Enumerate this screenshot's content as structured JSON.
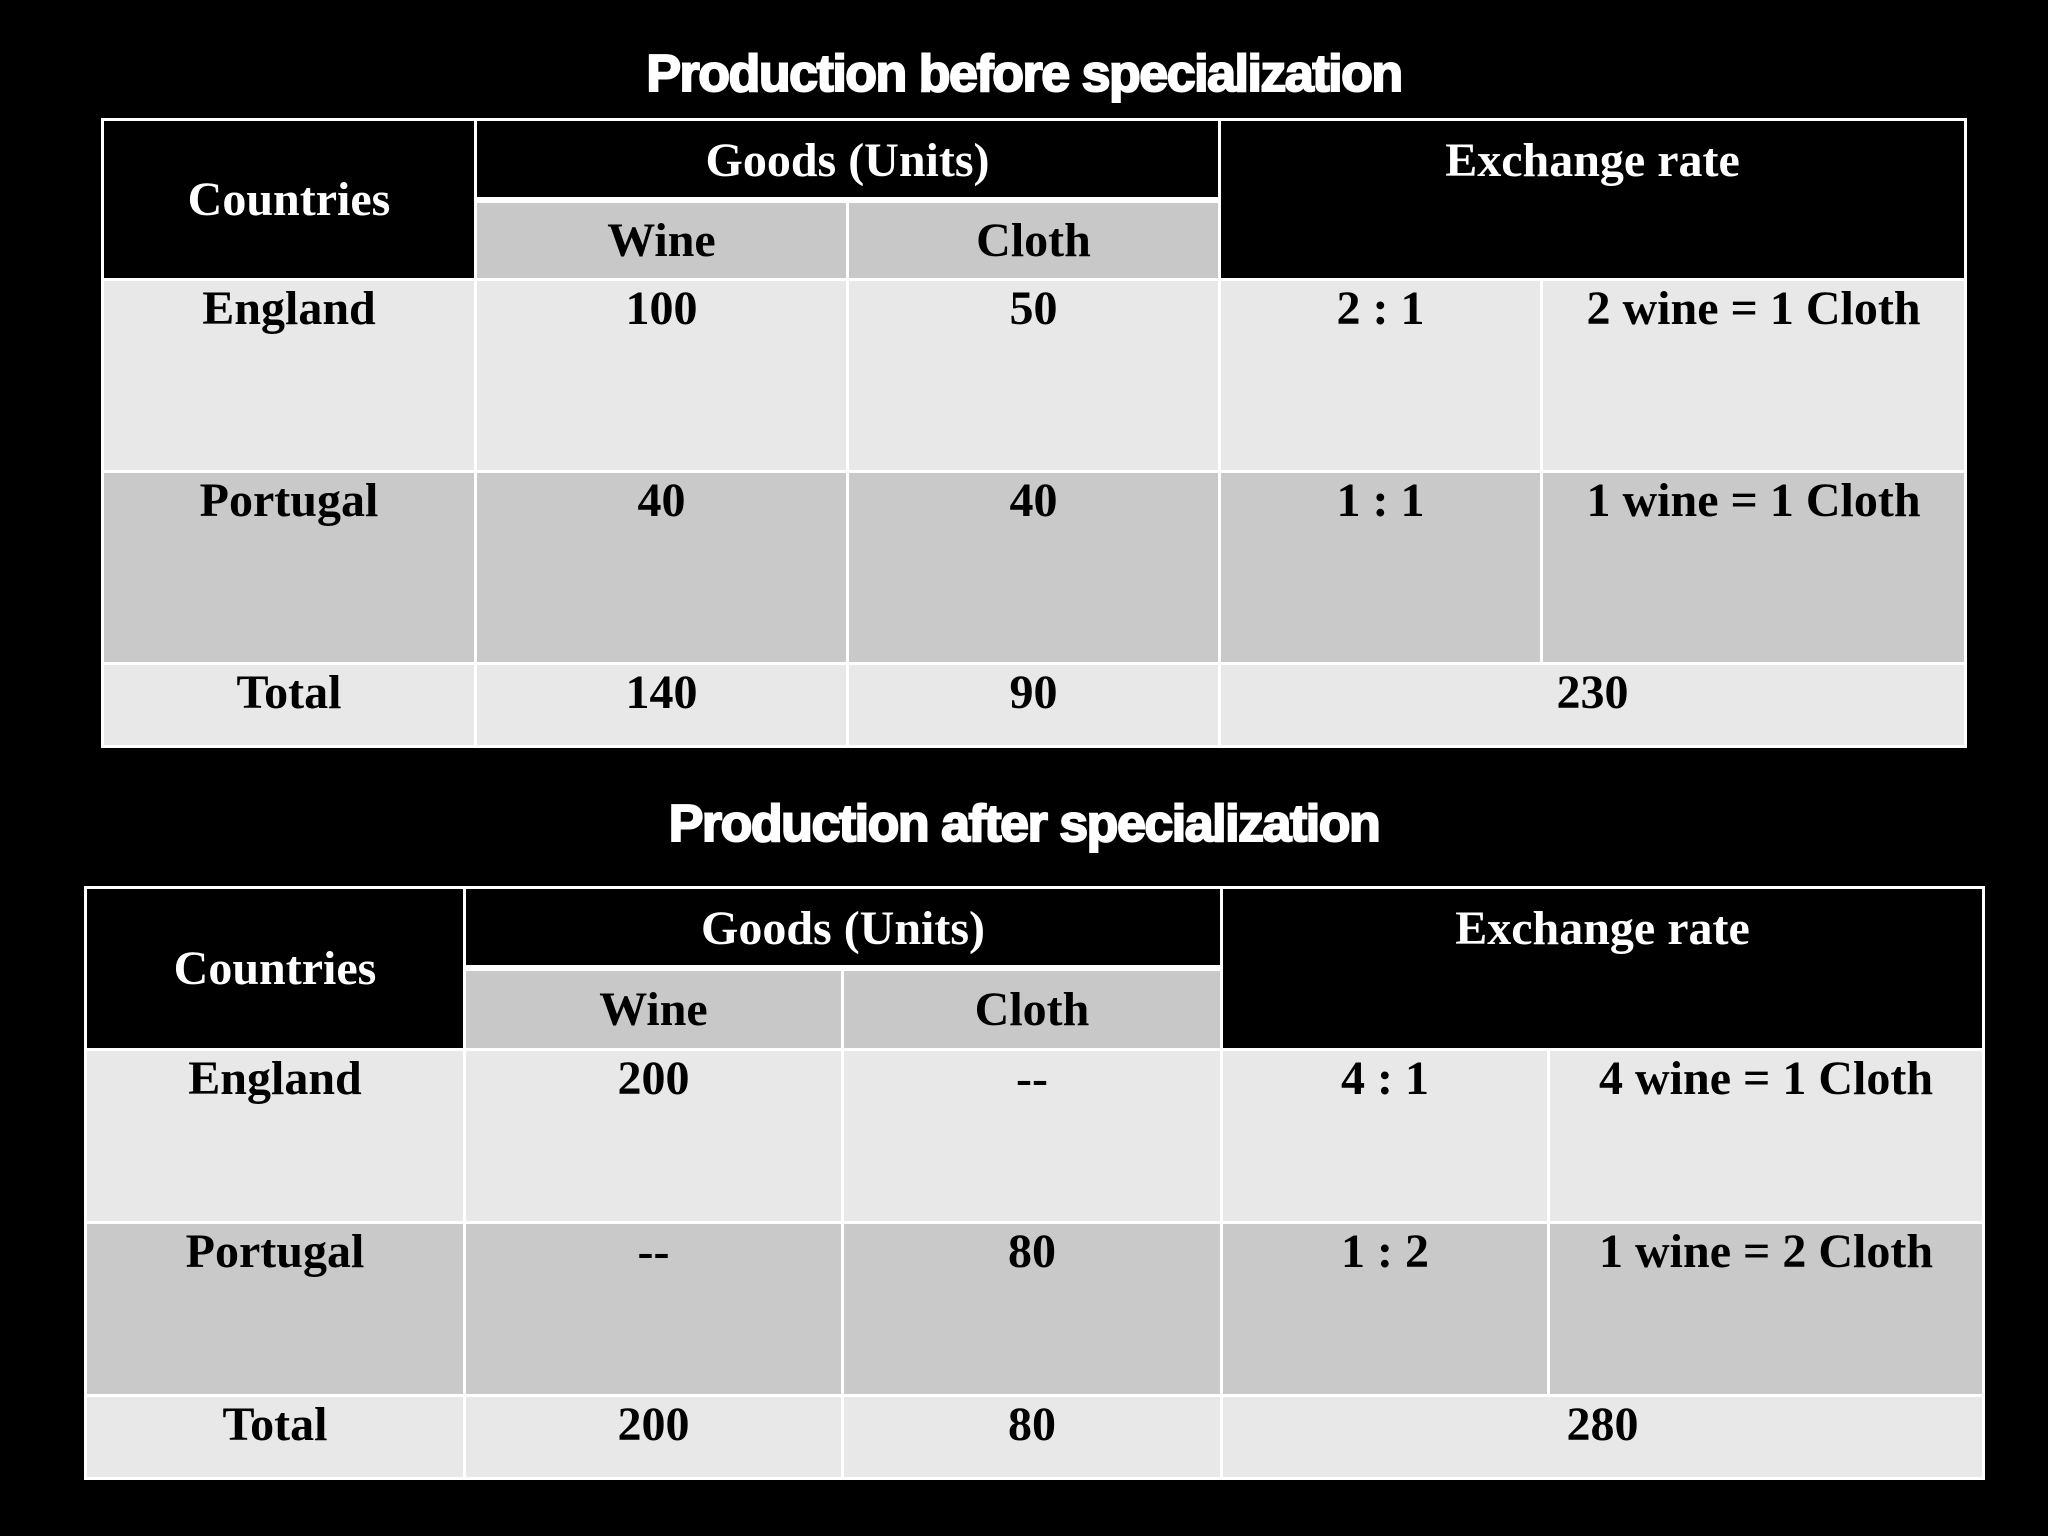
{
  "before": {
    "title": "Production before specialization",
    "headers": {
      "countries": "Countries",
      "goods": "Goods (Units)",
      "wine": "Wine",
      "cloth": "Cloth",
      "exchange_rate": "Exchange rate"
    },
    "rows": [
      {
        "country": "England",
        "wine": "100",
        "cloth": "50",
        "ratio": "2 : 1",
        "rate": "2 wine = 1  Cloth"
      },
      {
        "country": "Portugal",
        "wine": "40",
        "cloth": "40",
        "ratio": "1 : 1",
        "rate": "1 wine = 1 Cloth"
      }
    ],
    "total": {
      "label": "Total",
      "wine": "140",
      "cloth": "90",
      "sum": "230"
    }
  },
  "after": {
    "title": "Production after specialization",
    "headers": {
      "countries": "Countries",
      "goods": "Goods (Units)",
      "wine": "Wine",
      "cloth": "Cloth",
      "exchange_rate": "Exchange rate"
    },
    "rows": [
      {
        "country": "England",
        "wine": "200",
        "cloth": "--",
        "ratio": "4 : 1",
        "rate": "4 wine = 1 Cloth"
      },
      {
        "country": "Portugal",
        "wine": "--",
        "cloth": "80",
        "ratio": "1 : 2",
        "rate": "1 wine = 2 Cloth"
      }
    ],
    "total": {
      "label": "Total",
      "wine": "200",
      "cloth": "80",
      "sum": "280"
    }
  },
  "colors": {
    "background": "#000000",
    "header_black": "#000000",
    "subheader_gray": "#c8c8c8",
    "row_light": "#e8e8e8",
    "row_dark": "#c9c9c9",
    "border": "#ffffff"
  }
}
